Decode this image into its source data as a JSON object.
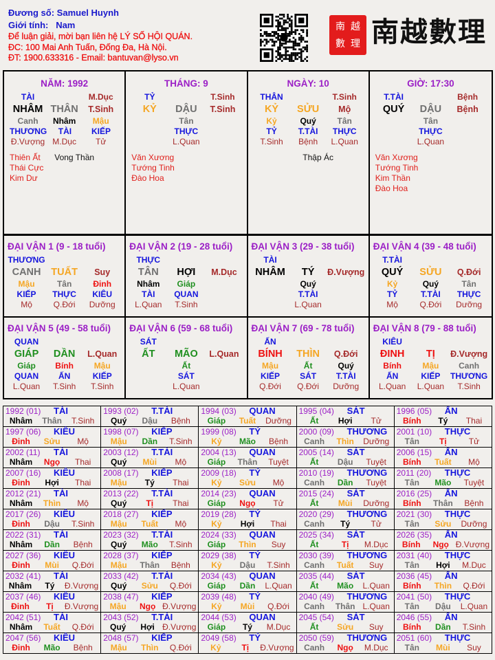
{
  "header": {
    "name_label": "Đương số:",
    "name": "Samuel Huynh",
    "gender_label": "Giới tính:",
    "gender": "Nam",
    "contact_line": "Để luận giải, mời bạn liên hệ LÝ SỐ HỘI QUÁN.",
    "address_line": "ĐC: 100 Mai Anh Tuấn, Đống Đa, Hà Nội.",
    "phone_line": "ĐT: 1900.633316 - Email: bantuvan@lyso.vn"
  },
  "logo": {
    "text": "南越數理",
    "seal_text": "南越數理"
  },
  "colors": {
    "wood": "#1f8f1f",
    "fire": "#ee1111",
    "earth": "#f5a623",
    "metal": "#707070",
    "water": "#000000",
    "god": "#1515dd",
    "title": "#9b1fc6",
    "stage": "#a52a2a",
    "star": "#e0201c"
  },
  "elements": {
    "giáp": "wood",
    "ất": "wood",
    "dần": "wood",
    "mão": "wood",
    "bính": "fire",
    "đinh": "fire",
    "tị": "fire",
    "ngọ": "fire",
    "mậu": "earth",
    "kỷ": "earth",
    "thìn": "earth",
    "tuất": "earth",
    "sửu": "earth",
    "mùi": "earth",
    "canh": "metal",
    "tân": "metal",
    "thân": "metal",
    "dậu": "metal",
    "nhâm": "water",
    "quý": "water",
    "tý": "water",
    "hợi": "water"
  },
  "pillars": [
    {
      "title": "NĂM: 1992",
      "god": "TÀI",
      "top_stage": "M.Dục",
      "stem": "NHÂM",
      "branch": "THÂN",
      "stage": "T.Sinh",
      "hidden": [
        {
          "stem": "Canh",
          "god": "THƯƠNG",
          "stage": "Đ.Vượng"
        },
        {
          "stem": "Nhâm",
          "god": "TÀI",
          "stage": "M.Dục"
        },
        {
          "stem": "Mậu",
          "god": "KIẾP",
          "stage": "Tử"
        }
      ],
      "stars": [
        "Thiên Ất",
        "Thái Cực",
        "Kim Dư"
      ],
      "center_star": "Vong Thần"
    },
    {
      "title": "THÁNG: 9",
      "god": "TỶ",
      "top_stage": "T.Sinh",
      "stem": "KỶ",
      "branch": "DẬU",
      "stage": "T.Sinh",
      "hidden": [
        null,
        {
          "stem": "Tân",
          "god": "THỰC",
          "stage": "L.Quan"
        },
        null
      ],
      "stars": [
        "Văn Xương",
        "Tướng Tinh",
        "Đào Hoa"
      ],
      "center_star": ""
    },
    {
      "title": "NGÀY: 10",
      "god": "THÂN",
      "top_stage": "T.Sinh",
      "stem": "KỶ",
      "branch": "SỬU",
      "stage": "Mộ",
      "hidden": [
        {
          "stem": "Kỷ",
          "god": "TỶ",
          "stage": "T.Sinh"
        },
        {
          "stem": "Quý",
          "god": "T.TÀI",
          "stage": "Bệnh"
        },
        {
          "stem": "Tân",
          "god": "THỰC",
          "stage": "L.Quan"
        }
      ],
      "stars": [],
      "center_star": "Thập Ác"
    },
    {
      "title": "GIỜ: 17:30",
      "god": "T.TÀI",
      "top_stage": "Bệnh",
      "stem": "QUÝ",
      "branch": "DẬU",
      "stage": "Bệnh",
      "hidden": [
        null,
        {
          "stem": "Tân",
          "god": "THỰC",
          "stage": "L.Quan"
        },
        null
      ],
      "stars": [
        "Văn Xương",
        "Tướng Tinh",
        "Kim Thần",
        "Đào Hoa"
      ],
      "center_star": ""
    }
  ],
  "dai_van": [
    {
      "title": "ĐẠI VẬN 1 (9 - 18 tuổi)",
      "god": "THƯƠNG",
      "stem": "CANH",
      "branch": "TUẤT",
      "stage": "Suy",
      "hidden": [
        {
          "stem": "Mậu",
          "god": "KIẾP",
          "stage": "Mộ"
        },
        {
          "stem": "Tân",
          "god": "THỰC",
          "stage": "Q.Đới"
        },
        {
          "stem": "Đinh",
          "god": "KIÊU",
          "stage": "Dưỡng"
        }
      ]
    },
    {
      "title": "ĐẠI VẬN 2 (19 - 28 tuổi)",
      "god": "THỰC",
      "stem": "TÂN",
      "branch": "HỢI",
      "stage": "M.Dục",
      "hidden": [
        {
          "stem": "Nhâm",
          "god": "TÀI",
          "stage": "L.Quan"
        },
        {
          "stem": "Giáp",
          "god": "QUAN",
          "stage": "T.Sinh"
        },
        null
      ]
    },
    {
      "title": "ĐẠI VẬN 3 (29 - 38 tuổi)",
      "god": "TÀI",
      "stem": "NHÂM",
      "branch": "TÝ",
      "stage": "Đ.Vượng",
      "hidden": [
        null,
        {
          "stem": "Quý",
          "god": "T.TÀI",
          "stage": "L.Quan"
        },
        null
      ]
    },
    {
      "title": "ĐẠI VẬN 4 (39 - 48 tuổi)",
      "god": "T.TÀI",
      "stem": "QUÝ",
      "branch": "SỬU",
      "stage": "Q.Đới",
      "hidden": [
        {
          "stem": "Kỷ",
          "god": "TỶ",
          "stage": "Mộ"
        },
        {
          "stem": "Quý",
          "god": "T.TÀI",
          "stage": "Q.Đới"
        },
        {
          "stem": "Tân",
          "god": "THỰC",
          "stage": "Dưỡng"
        }
      ]
    },
    {
      "title": "ĐẠI VẬN 5 (49 - 58 tuổi)",
      "god": "QUAN",
      "stem": "GIÁP",
      "branch": "DẦN",
      "stage": "L.Quan",
      "hidden": [
        {
          "stem": "Giáp",
          "god": "QUAN",
          "stage": "L.Quan"
        },
        {
          "stem": "Bính",
          "god": "ẤN",
          "stage": "T.Sinh"
        },
        {
          "stem": "Mậu",
          "god": "KIẾP",
          "stage": "T.Sinh"
        }
      ]
    },
    {
      "title": "ĐẠI VẬN 6 (59 - 68 tuổi)",
      "god": "SÁT",
      "stem": "ẤT",
      "branch": "MÃO",
      "stage": "L.Quan",
      "hidden": [
        null,
        {
          "stem": "Ất",
          "god": "SÁT",
          "stage": "L.Quan"
        },
        null
      ]
    },
    {
      "title": "ĐẠI VẬN 7 (69 - 78 tuổi)",
      "god": "ẤN",
      "stem": "BÍNH",
      "branch": "THÌN",
      "stage": "Q.Đới",
      "hidden": [
        {
          "stem": "Mậu",
          "god": "KIẾP",
          "stage": "Q.Đới"
        },
        {
          "stem": "Ất",
          "god": "SÁT",
          "stage": "Q.Đới"
        },
        {
          "stem": "Quý",
          "god": "T.TÀI",
          "stage": "Dưỡng"
        }
      ]
    },
    {
      "title": "ĐẠI VẬN 8 (79 - 88 tuổi)",
      "god": "KIÊU",
      "stem": "ĐINH",
      "branch": "TỊ",
      "stage": "Đ.Vượng",
      "hidden": [
        {
          "stem": "Bính",
          "god": "ẤN",
          "stage": "L.Quan"
        },
        {
          "stem": "Mậu",
          "god": "KIẾP",
          "stage": "L.Quan"
        },
        {
          "stem": "Canh",
          "god": "THƯƠNG",
          "stage": "T.Sinh"
        }
      ]
    }
  ],
  "years": [
    [
      "1992 (01)",
      "TÀI",
      "Nhâm",
      "Thân",
      "T.Sinh"
    ],
    [
      "1993 (02)",
      "T.TÀI",
      "Quý",
      "Dậu",
      "Bệnh"
    ],
    [
      "1994 (03)",
      "QUAN",
      "Giáp",
      "Tuất",
      "Dưỡng"
    ],
    [
      "1995 (04)",
      "SÁT",
      "Ất",
      "Hợi",
      "Tử"
    ],
    [
      "1996 (05)",
      "ẤN",
      "Bính",
      "Tý",
      "Thai"
    ],
    [
      "1997 (06)",
      "KIÊU",
      "Đinh",
      "Sửu",
      "Mộ"
    ],
    [
      "1998 (07)",
      "KIẾP",
      "Mậu",
      "Dần",
      "T.Sinh"
    ],
    [
      "1999 (08)",
      "TỶ",
      "Kỷ",
      "Mão",
      "Bệnh"
    ],
    [
      "2000 (09)",
      "THƯƠNG",
      "Canh",
      "Thìn",
      "Dưỡng"
    ],
    [
      "2001 (10)",
      "THỰC",
      "Tân",
      "Tị",
      "Tử"
    ],
    [
      "2002 (11)",
      "TÀI",
      "Nhâm",
      "Ngọ",
      "Thai"
    ],
    [
      "2003 (12)",
      "T.TÀI",
      "Quý",
      "Mùi",
      "Mộ"
    ],
    [
      "2004 (13)",
      "QUAN",
      "Giáp",
      "Thân",
      "Tuyệt"
    ],
    [
      "2005 (14)",
      "SÁT",
      "Ất",
      "Dậu",
      "Tuyệt"
    ],
    [
      "2006 (15)",
      "ẤN",
      "Bính",
      "Tuất",
      "Mộ"
    ],
    [
      "2007 (16)",
      "KIÊU",
      "Đinh",
      "Hợi",
      "Thai"
    ],
    [
      "2008 (17)",
      "KIẾP",
      "Mậu",
      "Tý",
      "Thai"
    ],
    [
      "2009 (18)",
      "TỶ",
      "Kỷ",
      "Sửu",
      "Mộ"
    ],
    [
      "2010 (19)",
      "THƯƠNG",
      "Canh",
      "Dần",
      "Tuyệt"
    ],
    [
      "2011 (20)",
      "THỰC",
      "Tân",
      "Mão",
      "Tuyệt"
    ],
    [
      "2012 (21)",
      "TÀI",
      "Nhâm",
      "Thìn",
      "Mộ"
    ],
    [
      "2013 (22)",
      "T.TÀI",
      "Quý",
      "Tị",
      "Thai"
    ],
    [
      "2014 (23)",
      "QUAN",
      "Giáp",
      "Ngọ",
      "Tử"
    ],
    [
      "2015 (24)",
      "SÁT",
      "Ất",
      "Mùi",
      "Dưỡng"
    ],
    [
      "2016 (25)",
      "ẤN",
      "Bính",
      "Thân",
      "Bệnh"
    ],
    [
      "2017 (26)",
      "KIÊU",
      "Đinh",
      "Dậu",
      "T.Sinh"
    ],
    [
      "2018 (27)",
      "KIẾP",
      "Mậu",
      "Tuất",
      "Mộ"
    ],
    [
      "2019 (28)",
      "TỶ",
      "Kỷ",
      "Hợi",
      "Thai"
    ],
    [
      "2020 (29)",
      "THƯƠNG",
      "Canh",
      "Tý",
      "Tử"
    ],
    [
      "2021 (30)",
      "THỰC",
      "Tân",
      "Sửu",
      "Dưỡng"
    ],
    [
      "2022 (31)",
      "TÀI",
      "Nhâm",
      "Dần",
      "Bệnh"
    ],
    [
      "2023 (32)",
      "T.TÀI",
      "Quý",
      "Mão",
      "T.Sinh"
    ],
    [
      "2024 (33)",
      "QUAN",
      "Giáp",
      "Thìn",
      "Suy"
    ],
    [
      "2025 (34)",
      "SÁT",
      "Ất",
      "Tị",
      "M.Dục"
    ],
    [
      "2026 (35)",
      "ẤN",
      "Bính",
      "Ngọ",
      "Đ.Vượng"
    ],
    [
      "2027 (36)",
      "KIÊU",
      "Đinh",
      "Mùi",
      "Q.Đới"
    ],
    [
      "2028 (37)",
      "KIẾP",
      "Mậu",
      "Thân",
      "Bệnh"
    ],
    [
      "2029 (38)",
      "TỶ",
      "Kỷ",
      "Dậu",
      "T.Sinh"
    ],
    [
      "2030 (39)",
      "THƯƠNG",
      "Canh",
      "Tuất",
      "Suy"
    ],
    [
      "2031 (40)",
      "THỰC",
      "Tân",
      "Hợi",
      "M.Dục"
    ],
    [
      "2032 (41)",
      "TÀI",
      "Nhâm",
      "Tý",
      "Đ.Vượng"
    ],
    [
      "2033 (42)",
      "T.TÀI",
      "Quý",
      "Sửu",
      "Q.Đới"
    ],
    [
      "2034 (43)",
      "QUAN",
      "Giáp",
      "Dần",
      "L.Quan"
    ],
    [
      "2035 (44)",
      "SÁT",
      "Ất",
      "Mão",
      "L.Quan"
    ],
    [
      "2036 (45)",
      "ẤN",
      "Bính",
      "Thìn",
      "Q.Đới"
    ],
    [
      "2037 (46)",
      "KIÊU",
      "Đinh",
      "Tị",
      "Đ.Vượng"
    ],
    [
      "2038 (47)",
      "KIẾP",
      "Mậu",
      "Ngọ",
      "Đ.Vượng"
    ],
    [
      "2039 (48)",
      "TỶ",
      "Kỷ",
      "Mùi",
      "Q.Đới"
    ],
    [
      "2040 (49)",
      "THƯƠNG",
      "Canh",
      "Thân",
      "L.Quan"
    ],
    [
      "2041 (50)",
      "THỰC",
      "Tân",
      "Dậu",
      "L.Quan"
    ],
    [
      "2042 (51)",
      "TÀI",
      "Nhâm",
      "Tuất",
      "Q.Đới"
    ],
    [
      "2043 (52)",
      "T.TÀI",
      "Quý",
      "Hợi",
      "Đ.Vượng"
    ],
    [
      "2044 (53)",
      "QUAN",
      "Giáp",
      "Tý",
      "M.Dục"
    ],
    [
      "2045 (54)",
      "SÁT",
      "Ất",
      "Sửu",
      "Suy"
    ],
    [
      "2046 (55)",
      "ẤN",
      "Bính",
      "Dần",
      "T.Sinh"
    ],
    [
      "2047 (56)",
      "KIÊU",
      "Đinh",
      "Mão",
      "Bệnh"
    ],
    [
      "2048 (57)",
      "KIẾP",
      "Mậu",
      "Thìn",
      "Q.Đới"
    ],
    [
      "2049 (58)",
      "TỶ",
      "Kỷ",
      "Tị",
      "Đ.Vượng"
    ],
    [
      "2050 (59)",
      "THƯƠNG",
      "Canh",
      "Ngọ",
      "M.Dục"
    ],
    [
      "2051 (60)",
      "THỰC",
      "Tân",
      "Mùi",
      "Suy"
    ]
  ]
}
